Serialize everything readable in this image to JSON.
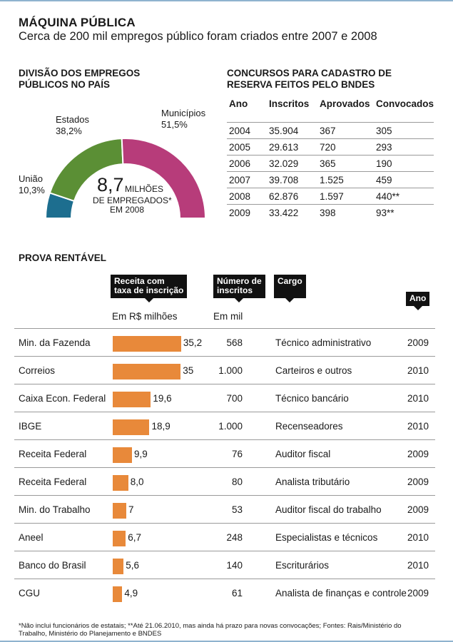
{
  "header": {
    "title": "MÁQUINA PÚBLICA",
    "subtitle": "Cerca de 200 mil empregos público foram criados entre 2007 e 2008"
  },
  "division": {
    "title_line1": "DIVISÃO DOS EMPREGOS",
    "title_line2": "PÚBLICOS NO PAÍS",
    "center_value": "8,7",
    "center_line1": "MILHÕES",
    "center_line2": "DE EMPREGADOS*",
    "center_line3": "EM 2008",
    "colors": {
      "Uniao": "#1d6e8f",
      "Estados": "#5b8f35",
      "Municipios": "#b73c7a"
    }
  },
  "table": {
    "title_line1": "CONCURSOS PARA CADASTRO DE",
    "title_line2": "RESERVA FEITOS PELO BNDES",
    "headers": [
      "Ano",
      "Inscritos",
      "Aprovados",
      "Convocados"
    ],
    "rows": [
      [
        "2004",
        "35.904",
        "367",
        "305"
      ],
      [
        "2005",
        "29.613",
        "720",
        "293"
      ],
      [
        "2006",
        "32.029",
        "365",
        "190"
      ],
      [
        "2007",
        "39.708",
        "1.525",
        "459"
      ],
      [
        "2008",
        "62.876",
        "1.597",
        "440**"
      ],
      [
        "2009",
        "33.422",
        "398",
        "93**"
      ]
    ]
  },
  "prova": {
    "title": "PROVA RENTÁVEL",
    "head_receita_1": "Receita com",
    "head_receita_2": "taxa de inscrição",
    "head_numero_1": "Número de",
    "head_numero_2": "inscritos",
    "head_cargo": "Cargo",
    "head_ano": "Ano",
    "unit_receita": "Em R$ milhões",
    "unit_numero": "Em mil",
    "rows": [
      {
        "org": "Min. da Fazenda",
        "receita_label": "35,2",
        "inscritos": "568",
        "cargo": "Técnico administrativo",
        "ano": "2009"
      },
      {
        "org": "Correios",
        "receita_label": "35",
        "inscritos": "1.000",
        "cargo": "Carteiros e outros",
        "ano": "2010"
      },
      {
        "org": "Caixa Econ. Federal",
        "receita_label": "19,6",
        "inscritos": "700",
        "cargo": "Técnico bancário",
        "ano": "2010"
      },
      {
        "org": "IBGE",
        "receita_label": "18,9",
        "inscritos": "1.000",
        "cargo": "Recenseadores",
        "ano": "2010"
      },
      {
        "org": "Receita Federal",
        "receita_label": "9,9",
        "inscritos": "76",
        "cargo": "Auditor fiscal",
        "ano": "2009"
      },
      {
        "org": "Receita Federal",
        "receita_label": "8,0",
        "inscritos": "80",
        "cargo": "Analista tributário",
        "ano": "2009"
      },
      {
        "org": "Min. do Trabalho",
        "receita_label": "7",
        "inscritos": "53",
        "cargo": "Auditor fiscal do trabalho",
        "ano": "2009"
      },
      {
        "org": "Aneel",
        "receita_label": "6,7",
        "inscritos": "248",
        "cargo": "Especialistas e técnicos",
        "ano": "2010"
      },
      {
        "org": "Banco do Brasil",
        "receita_label": "5,6",
        "inscritos": "140",
        "cargo": "Escriturários",
        "ano": "2010"
      },
      {
        "org": "CGU",
        "receita_label": "4,9",
        "inscritos": "61",
        "cargo": "Analista de finanças e controle",
        "ano": "2009"
      }
    ]
  },
  "footnote": "*Não inclui funcionários de estatais;  **Até 21.06.2010, mas ainda há prazo para novas convocações;  Fontes: Rais/Ministério do Trabalho, Ministério do Planejamento e BNDES",
  "chart_data": [
    {
      "type": "pie",
      "variant": "semi-donut",
      "title": "DIVISÃO DOS EMPREGOS PÚBLICOS NO PAÍS",
      "labels": [
        "União",
        "Estados",
        "Municípios"
      ],
      "value_labels": [
        "10,3%",
        "38,2%",
        "51,5%"
      ],
      "values": [
        10.3,
        38.2,
        51.5
      ],
      "colors": [
        "#1d6e8f",
        "#5b8f35",
        "#b73c7a"
      ]
    },
    {
      "type": "bar",
      "orientation": "horizontal",
      "title": "PROVA RENTÁVEL",
      "xlabel": "Em R$ milhões",
      "categories": [
        "Min. da Fazenda",
        "Correios",
        "Caixa Econ. Federal",
        "IBGE",
        "Receita Federal",
        "Receita Federal",
        "Min. do Trabalho",
        "Aneel",
        "Banco do Brasil",
        "CGU"
      ],
      "values": [
        35.2,
        35,
        19.6,
        18.9,
        9.9,
        8.0,
        7,
        6.7,
        5.6,
        4.9
      ],
      "xlim": [
        0,
        36
      ],
      "color": "#e8893a"
    }
  ]
}
